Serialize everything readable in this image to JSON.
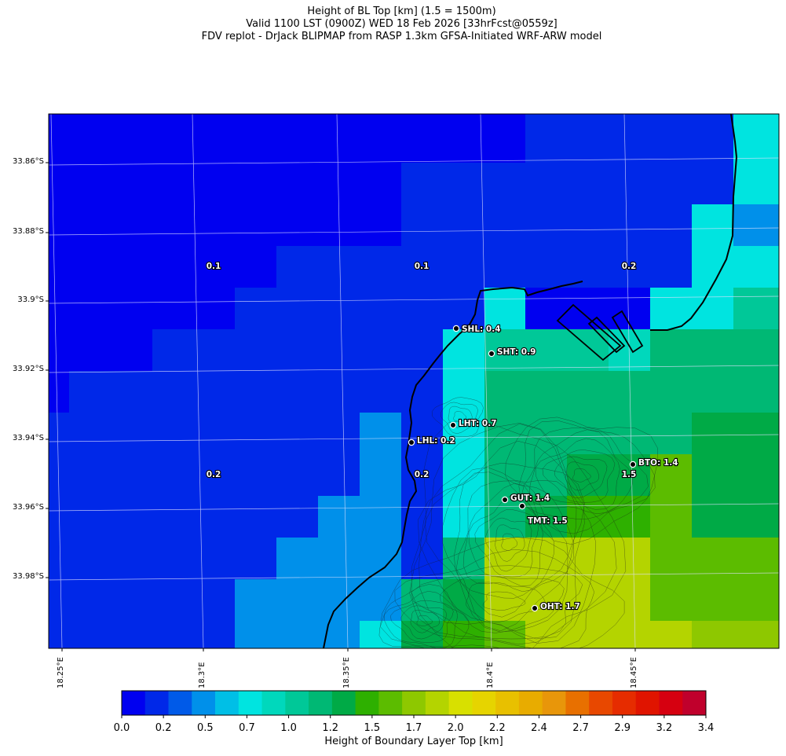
{
  "title": {
    "line1": "Height of BL Top [km] (1.5 = 1500m)",
    "line2": "Valid 1100 LST (0900Z) WED 18 Feb 2026 [33hrFcst@0559z]",
    "line3": "FDV replot - DrJack BLIPMAP from RASP 1.3km GFSA-Initiated WRF-ARW model"
  },
  "lat_ticks": [
    "33.86°S",
    "33.88°S",
    "33.9°S",
    "33.92°S",
    "33.94°S",
    "33.96°S",
    "33.98°S"
  ],
  "lon_ticks": [
    "18.25°E",
    "18.3°E",
    "18.35°E",
    "18.4°E",
    "18.45°E"
  ],
  "stations": [
    {
      "code": "SHL",
      "label": "SHL: 0.4",
      "value": 0.4
    },
    {
      "code": "SHT",
      "label": "SHT: 0.9",
      "value": 0.9
    },
    {
      "code": "LHT",
      "label": "LHT: 0.7",
      "value": 0.7
    },
    {
      "code": "LHL",
      "label": "LHL: 0.2",
      "value": 0.2
    },
    {
      "code": "BTO",
      "label": "BTO: 1.4",
      "value": 1.4
    },
    {
      "code": "GUT",
      "label": "GUT: 1.4",
      "value": 1.4
    },
    {
      "code": "TMT",
      "label": "TMT: 1.5",
      "value": 1.5
    },
    {
      "code": "OHT",
      "label": "OHT: 1.7",
      "value": 1.7
    }
  ],
  "grid_values": [
    "0.1",
    "0.1",
    "0.2",
    "0.2",
    "0.2",
    "1.5"
  ],
  "colorbar": {
    "title": "Height of Boundary Layer Top [km]",
    "tick_labels": [
      "0.0",
      "0.2",
      "0.5",
      "0.7",
      "1.0",
      "1.2",
      "1.5",
      "1.7",
      "2.0",
      "2.2",
      "2.4",
      "2.7",
      "2.9",
      "3.2",
      "3.4"
    ],
    "colors": [
      "#0000f0",
      "#0028e8",
      "#005ae8",
      "#0090ea",
      "#00bfe6",
      "#00e4e0",
      "#00d8bc",
      "#00c898",
      "#00b874",
      "#00aa46",
      "#2eb000",
      "#5cbc00",
      "#8ec800",
      "#b4d400",
      "#d8e000",
      "#e6d400",
      "#e8c000",
      "#e8ac00",
      "#e8960a",
      "#e87000",
      "#e84800",
      "#e62c00",
      "#e01400",
      "#d60010",
      "#c0002c"
    ]
  },
  "colors": {
    "ocean": "#0000f0",
    "coastline": "#000000",
    "gridline": "#d8d8ff"
  }
}
